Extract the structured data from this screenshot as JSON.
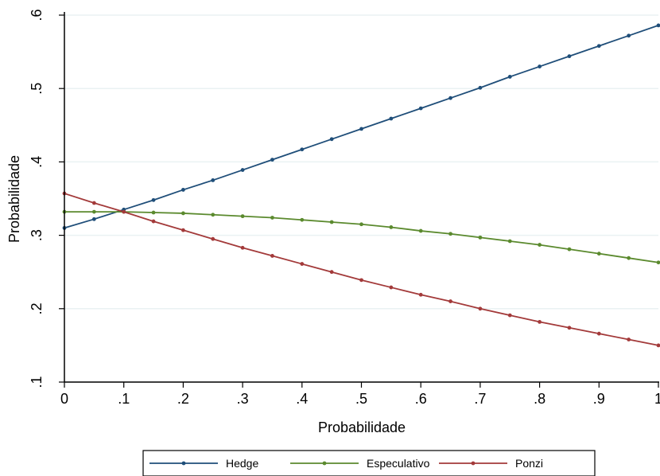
{
  "chart_data": {
    "type": "line",
    "x": [
      0,
      0.05,
      0.1,
      0.15,
      0.2,
      0.25,
      0.3,
      0.35,
      0.4,
      0.45,
      0.5,
      0.55,
      0.6,
      0.65,
      0.7,
      0.75,
      0.8,
      0.85,
      0.9,
      0.95,
      1
    ],
    "series": [
      {
        "name": "Hedge",
        "color": "#1f4e79",
        "values": [
          0.31,
          0.322,
          0.335,
          0.348,
          0.362,
          0.375,
          0.389,
          0.403,
          0.417,
          0.431,
          0.445,
          0.459,
          0.473,
          0.487,
          0.501,
          0.516,
          0.53,
          0.544,
          0.558,
          0.572,
          0.586
        ]
      },
      {
        "name": "Especulativo",
        "color": "#5b8a2e",
        "values": [
          0.332,
          0.332,
          0.332,
          0.331,
          0.33,
          0.328,
          0.326,
          0.324,
          0.321,
          0.318,
          0.315,
          0.311,
          0.306,
          0.302,
          0.297,
          0.292,
          0.287,
          0.281,
          0.275,
          0.269,
          0.263
        ]
      },
      {
        "name": "Ponzi",
        "color": "#a33a3a",
        "values": [
          0.357,
          0.344,
          0.332,
          0.319,
          0.307,
          0.295,
          0.283,
          0.272,
          0.261,
          0.25,
          0.239,
          0.229,
          0.219,
          0.21,
          0.2,
          0.191,
          0.182,
          0.174,
          0.166,
          0.158,
          0.15
        ]
      }
    ],
    "xlabel": "Probabilidade",
    "ylabel": "Probabilidade",
    "xlim": [
      0,
      1
    ],
    "ylim": [
      0.1,
      0.6
    ],
    "xticks": [
      0,
      0.1,
      0.2,
      0.3,
      0.4,
      0.5,
      0.6,
      0.7,
      0.8,
      0.9,
      1
    ],
    "xtick_labels": [
      "0",
      ".1",
      ".2",
      ".3",
      ".4",
      ".5",
      ".6",
      ".7",
      ".8",
      ".9",
      "1"
    ],
    "yticks": [
      0.1,
      0.2,
      0.3,
      0.4,
      0.5,
      0.6
    ],
    "ytick_labels": [
      ".1",
      ".2",
      ".3",
      ".4",
      ".5",
      ".6"
    ],
    "grid": "horizontal",
    "legend_position": "bottom",
    "colors": {
      "grid": "#eaf2f3",
      "axis": "#000000"
    }
  }
}
